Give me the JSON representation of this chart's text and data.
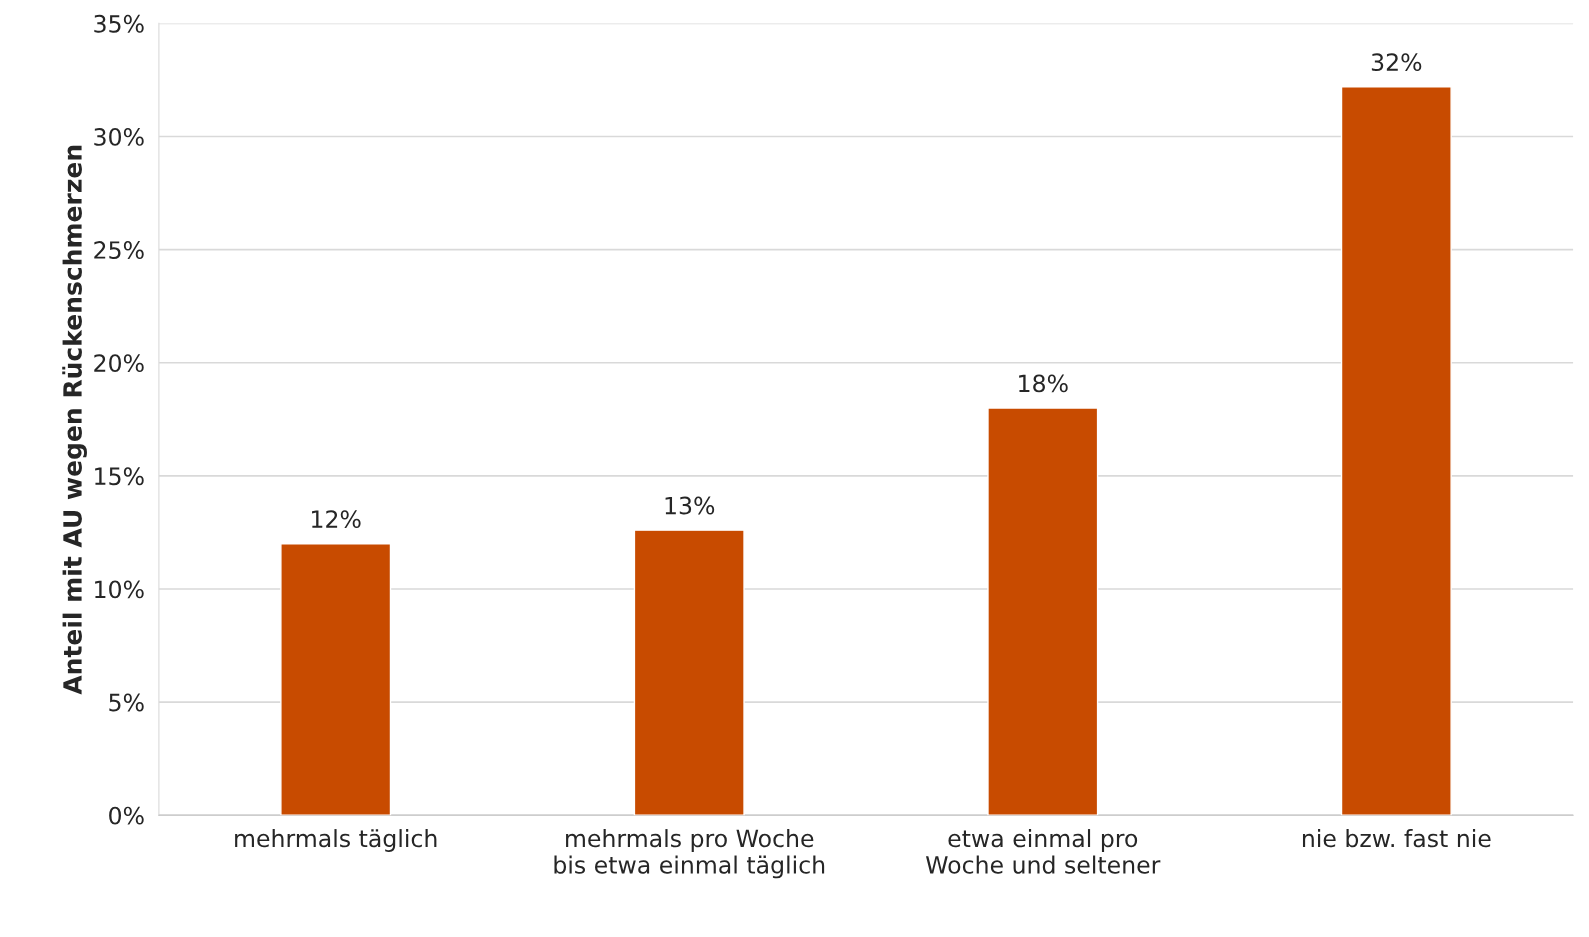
{
  "chart_data": {
    "type": "bar",
    "ylabel": "Anteil mit AU wegen Rückenschmerzen",
    "categories": [
      "mehrmals täglich",
      "mehrmals pro Woche\nbis etwa einmal täglich",
      "etwa einmal pro\nWoche und seltener",
      "nie bzw. fast nie"
    ],
    "values": [
      12,
      12.6,
      18,
      32.2
    ],
    "value_labels": [
      "12%",
      "13%",
      "18%",
      "32%"
    ],
    "color": "#c84b00",
    "ylim": [
      0,
      35
    ],
    "yticks": [
      {
        "value": 0,
        "label": "0%"
      },
      {
        "value": 5,
        "label": "5%"
      },
      {
        "value": 10,
        "label": "10%"
      },
      {
        "value": 15,
        "label": "15%"
      },
      {
        "value": 20,
        "label": "20%"
      },
      {
        "value": 25,
        "label": "25%"
      },
      {
        "value": 30,
        "label": "30%"
      },
      {
        "value": 35,
        "label": "35%"
      }
    ],
    "grid": "y"
  }
}
